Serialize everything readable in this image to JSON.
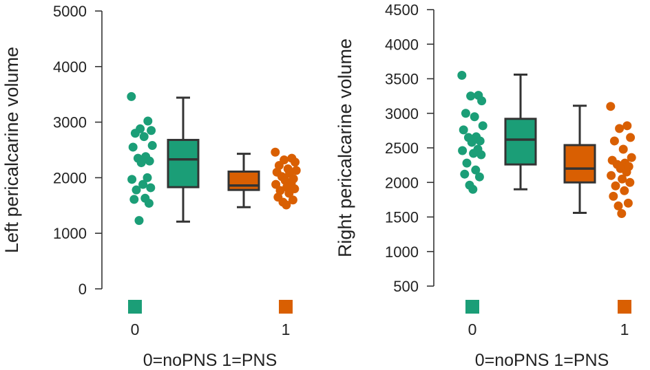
{
  "colors": {
    "noPNS": "#1b9e77",
    "PNS": "#d95f02",
    "axis": "#333333"
  },
  "chart_data": [
    {
      "type": "boxplot",
      "ylabel": "Left pericalcarine volume",
      "xlabel": "0=noPNS 1=PNS",
      "ylim": [
        0,
        5000
      ],
      "yticks": [
        0,
        1000,
        2000,
        3000,
        4000,
        5000
      ],
      "groups": [
        {
          "label": "0",
          "color_key": "noPNS",
          "box": {
            "whisker_low": 1210,
            "q1": 1830,
            "median": 2330,
            "q3": 2680,
            "whisker_high": 3440
          },
          "points": [
            3460,
            3020,
            2880,
            2850,
            2800,
            2740,
            2580,
            2550,
            2380,
            2350,
            2300,
            2270,
            2000,
            1970,
            1880,
            1820,
            1780,
            1630,
            1610,
            1540,
            1230
          ]
        },
        {
          "label": "1",
          "color_key": "PNS",
          "box": {
            "whisker_low": 1470,
            "q1": 1780,
            "median": 1860,
            "q3": 2110,
            "whisker_high": 2430
          },
          "points": [
            2460,
            2350,
            2320,
            2280,
            2220,
            2160,
            2130,
            2100,
            2080,
            2020,
            1980,
            1950,
            1900,
            1880,
            1830,
            1800,
            1770,
            1720,
            1650,
            1600,
            1560,
            1510
          ]
        }
      ]
    },
    {
      "type": "boxplot",
      "ylabel": "Right pericalcarine volume",
      "xlabel": "0=noPNS 1=PNS",
      "ylim": [
        500,
        4500
      ],
      "yticks": [
        500,
        1000,
        1500,
        2000,
        2500,
        3000,
        3500,
        4000,
        4500
      ],
      "groups": [
        {
          "label": "0",
          "color_key": "noPNS",
          "box": {
            "whisker_low": 1900,
            "q1": 2260,
            "median": 2620,
            "q3": 2920,
            "whisker_high": 3560
          },
          "points": [
            3550,
            3260,
            3250,
            3180,
            3000,
            2950,
            2820,
            2760,
            2660,
            2650,
            2600,
            2580,
            2480,
            2460,
            2420,
            2400,
            2280,
            2180,
            2120,
            2080,
            1960,
            1900
          ]
        },
        {
          "label": "1",
          "color_key": "PNS",
          "box": {
            "whisker_low": 1560,
            "q1": 2000,
            "median": 2200,
            "q3": 2540,
            "whisker_high": 3110
          },
          "points": [
            3100,
            2820,
            2780,
            2650,
            2600,
            2480,
            2360,
            2320,
            2280,
            2260,
            2230,
            2200,
            2150,
            2100,
            2050,
            2000,
            1950,
            1880,
            1800,
            1700,
            1660,
            1550
          ]
        }
      ]
    }
  ]
}
